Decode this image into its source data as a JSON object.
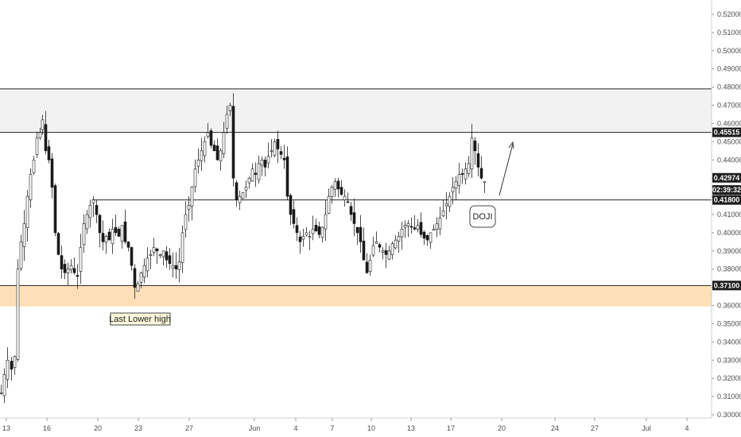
{
  "chart_data": {
    "type": "candlestick",
    "title": "",
    "xlabel": "",
    "ylabel": "",
    "ylim": [
      0.3,
      0.525
    ],
    "grid": false,
    "y_ticks": [
      "0.52000",
      "0.51000",
      "0.50000",
      "0.49000",
      "0.48000",
      "0.47000",
      "0.46000",
      "0.45000",
      "0.44000",
      "0.43000",
      "0.42000",
      "0.41000",
      "0.40000",
      "0.39000",
      "0.38000",
      "0.37000",
      "0.36000",
      "0.35000",
      "0.34000",
      "0.33000",
      "0.32000",
      "0.31000",
      "0.30000"
    ],
    "x_ticks": [
      "13",
      "16",
      "20",
      "23",
      "27",
      "Jun",
      "4",
      "7",
      "10",
      "13",
      "17",
      "20",
      "24",
      "27",
      "Jul",
      "4"
    ],
    "price_tags": [
      {
        "label": "0.45515",
        "value": 0.45515,
        "style": "dark"
      },
      {
        "label": "0.42974",
        "value": 0.42974,
        "style": "dark"
      },
      {
        "label": "02:39:32",
        "value": 0.4248,
        "style": "dark"
      },
      {
        "label": "0.41800",
        "value": 0.418,
        "style": "dark"
      },
      {
        "label": "0.37100",
        "value": 0.371,
        "style": "dark"
      }
    ],
    "horizontal_lines": [
      {
        "name": "top-zone-upper",
        "value": 0.479
      },
      {
        "name": "resistance",
        "value": 0.45515
      },
      {
        "name": "support-mid",
        "value": 0.418
      },
      {
        "name": "support-low",
        "value": 0.371
      }
    ],
    "zones": [
      {
        "name": "resistance-zone",
        "from": 0.45515,
        "to": 0.479,
        "color": "#f2f2f2"
      },
      {
        "name": "support-zone",
        "from": 0.3595,
        "to": 0.371,
        "color": "#fde0b8"
      }
    ],
    "annotations": [
      {
        "name": "last-lower-high-label",
        "text": "Last Lower high"
      },
      {
        "name": "doji-label",
        "text": "DOJI"
      }
    ],
    "series_path": [
      [
        0,
        0.312
      ],
      [
        4,
        0.322
      ],
      [
        8,
        0.33
      ],
      [
        13,
        0.325
      ],
      [
        17,
        0.332
      ],
      [
        21,
        0.38
      ],
      [
        25,
        0.395
      ],
      [
        29,
        0.405
      ],
      [
        33,
        0.42
      ],
      [
        37,
        0.432
      ],
      [
        41,
        0.44
      ],
      [
        45,
        0.452
      ],
      [
        49,
        0.455
      ],
      [
        52,
        0.462
      ],
      [
        56,
        0.445
      ],
      [
        60,
        0.44
      ],
      [
        64,
        0.425
      ],
      [
        68,
        0.4
      ],
      [
        72,
        0.388
      ],
      [
        76,
        0.38
      ],
      [
        80,
        0.378
      ],
      [
        84,
        0.38
      ],
      [
        88,
        0.382
      ],
      [
        92,
        0.378
      ],
      [
        96,
        0.376
      ],
      [
        100,
        0.392
      ],
      [
        104,
        0.405
      ],
      [
        108,
        0.41
      ],
      [
        112,
        0.415
      ],
      [
        116,
        0.418
      ],
      [
        120,
        0.41
      ],
      [
        124,
        0.4
      ],
      [
        128,
        0.395
      ],
      [
        132,
        0.398
      ],
      [
        136,
        0.396
      ],
      [
        140,
        0.402
      ],
      [
        144,
        0.4
      ],
      [
        148,
        0.398
      ],
      [
        152,
        0.404
      ],
      [
        156,
        0.395
      ],
      [
        160,
        0.392
      ],
      [
        164,
        0.382
      ],
      [
        168,
        0.37
      ],
      [
        172,
        0.372
      ],
      [
        176,
        0.378
      ],
      [
        180,
        0.382
      ],
      [
        184,
        0.386
      ],
      [
        188,
        0.388
      ],
      [
        192,
        0.392
      ],
      [
        196,
        0.39
      ],
      [
        200,
        0.388
      ],
      [
        204,
        0.39
      ],
      [
        208,
        0.385
      ],
      [
        212,
        0.383
      ],
      [
        216,
        0.382
      ],
      [
        220,
        0.38
      ],
      [
        224,
        0.384
      ],
      [
        228,
        0.4
      ],
      [
        232,
        0.41
      ],
      [
        236,
        0.415
      ],
      [
        240,
        0.425
      ],
      [
        244,
        0.435
      ],
      [
        248,
        0.44
      ],
      [
        252,
        0.445
      ],
      [
        256,
        0.45
      ],
      [
        260,
        0.455
      ],
      [
        264,
        0.448
      ],
      [
        268,
        0.445
      ],
      [
        272,
        0.44
      ],
      [
        276,
        0.445
      ],
      [
        280,
        0.455
      ],
      [
        284,
        0.465
      ],
      [
        288,
        0.47
      ],
      [
        292,
        0.43
      ],
      [
        296,
        0.418
      ],
      [
        300,
        0.42
      ],
      [
        304,
        0.422
      ],
      [
        308,
        0.425
      ],
      [
        312,
        0.43
      ],
      [
        316,
        0.435
      ],
      [
        320,
        0.432
      ],
      [
        324,
        0.438
      ],
      [
        328,
        0.44
      ],
      [
        332,
        0.436
      ],
      [
        336,
        0.442
      ],
      [
        340,
        0.445
      ],
      [
        344,
        0.45
      ],
      [
        348,
        0.446
      ],
      [
        352,
        0.443
      ],
      [
        356,
        0.44
      ],
      [
        360,
        0.42
      ],
      [
        364,
        0.41
      ],
      [
        368,
        0.405
      ],
      [
        372,
        0.4
      ],
      [
        376,
        0.395
      ],
      [
        380,
        0.398
      ],
      [
        384,
        0.4
      ],
      [
        388,
        0.398
      ],
      [
        392,
        0.402
      ],
      [
        396,
        0.401
      ],
      [
        400,
        0.399
      ],
      [
        404,
        0.403
      ],
      [
        408,
        0.41
      ],
      [
        412,
        0.42
      ],
      [
        416,
        0.425
      ],
      [
        420,
        0.428
      ],
      [
        424,
        0.424
      ],
      [
        428,
        0.421
      ],
      [
        432,
        0.42
      ],
      [
        436,
        0.417
      ],
      [
        440,
        0.41
      ],
      [
        444,
        0.405
      ],
      [
        448,
        0.4
      ],
      [
        452,
        0.395
      ],
      [
        456,
        0.385
      ],
      [
        460,
        0.378
      ],
      [
        464,
        0.385
      ],
      [
        468,
        0.393
      ],
      [
        472,
        0.395
      ],
      [
        476,
        0.392
      ],
      [
        480,
        0.39
      ],
      [
        484,
        0.388
      ],
      [
        488,
        0.39
      ],
      [
        492,
        0.394
      ],
      [
        496,
        0.396
      ],
      [
        500,
        0.398
      ],
      [
        504,
        0.402
      ],
      [
        508,
        0.404
      ],
      [
        512,
        0.405
      ],
      [
        516,
        0.403
      ],
      [
        520,
        0.402
      ],
      [
        524,
        0.404
      ],
      [
        528,
        0.399
      ],
      [
        532,
        0.397
      ],
      [
        536,
        0.396
      ],
      [
        540,
        0.4
      ],
      [
        544,
        0.402
      ],
      [
        548,
        0.405
      ],
      [
        552,
        0.408
      ],
      [
        556,
        0.412
      ],
      [
        560,
        0.416
      ],
      [
        564,
        0.42
      ],
      [
        568,
        0.425
      ],
      [
        572,
        0.428
      ],
      [
        576,
        0.432
      ],
      [
        580,
        0.432
      ],
      [
        584,
        0.435
      ],
      [
        588,
        0.438
      ],
      [
        592,
        0.452
      ],
      [
        596,
        0.445
      ],
      [
        600,
        0.436
      ],
      [
        604,
        0.43
      ],
      [
        608,
        0.428
      ]
    ]
  }
}
